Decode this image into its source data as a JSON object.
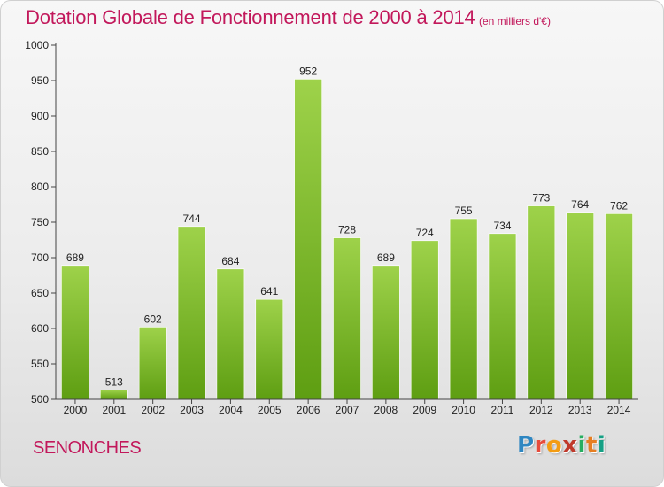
{
  "header": {
    "title": "Dotation Globale de Fonctionnement de 2000 à 2014",
    "unit_note": "(en milliers d'€)"
  },
  "footer": {
    "city": "SENONCHES",
    "logo_letters": [
      "P",
      "r",
      "o",
      "x",
      "i",
      "t",
      "i"
    ],
    "logo_colors": [
      "#2e86c1",
      "#e74c3c",
      "#f39c12",
      "#c0392b",
      "#27ae60",
      "#e67e22",
      "#16a085"
    ]
  },
  "chart_data": {
    "type": "bar",
    "title": "Dotation Globale de Fonctionnement de 2000 à 2014",
    "subtitle": "(en milliers d'€)",
    "categories": [
      "2000",
      "2001",
      "2002",
      "2003",
      "2004",
      "2005",
      "2006",
      "2007",
      "2008",
      "2009",
      "2010",
      "2011",
      "2012",
      "2013",
      "2014"
    ],
    "values": [
      689,
      513,
      602,
      744,
      684,
      641,
      952,
      728,
      689,
      724,
      755,
      734,
      773,
      764,
      762
    ],
    "yticks": [
      "500",
      "550",
      "600",
      "650",
      "700",
      "750",
      "800",
      "850",
      "900",
      "950",
      "1000"
    ],
    "ylim": [
      500,
      1000
    ],
    "grid": false,
    "bar_color_top": "#9ed24a",
    "bar_color_bottom": "#5e9e12"
  }
}
